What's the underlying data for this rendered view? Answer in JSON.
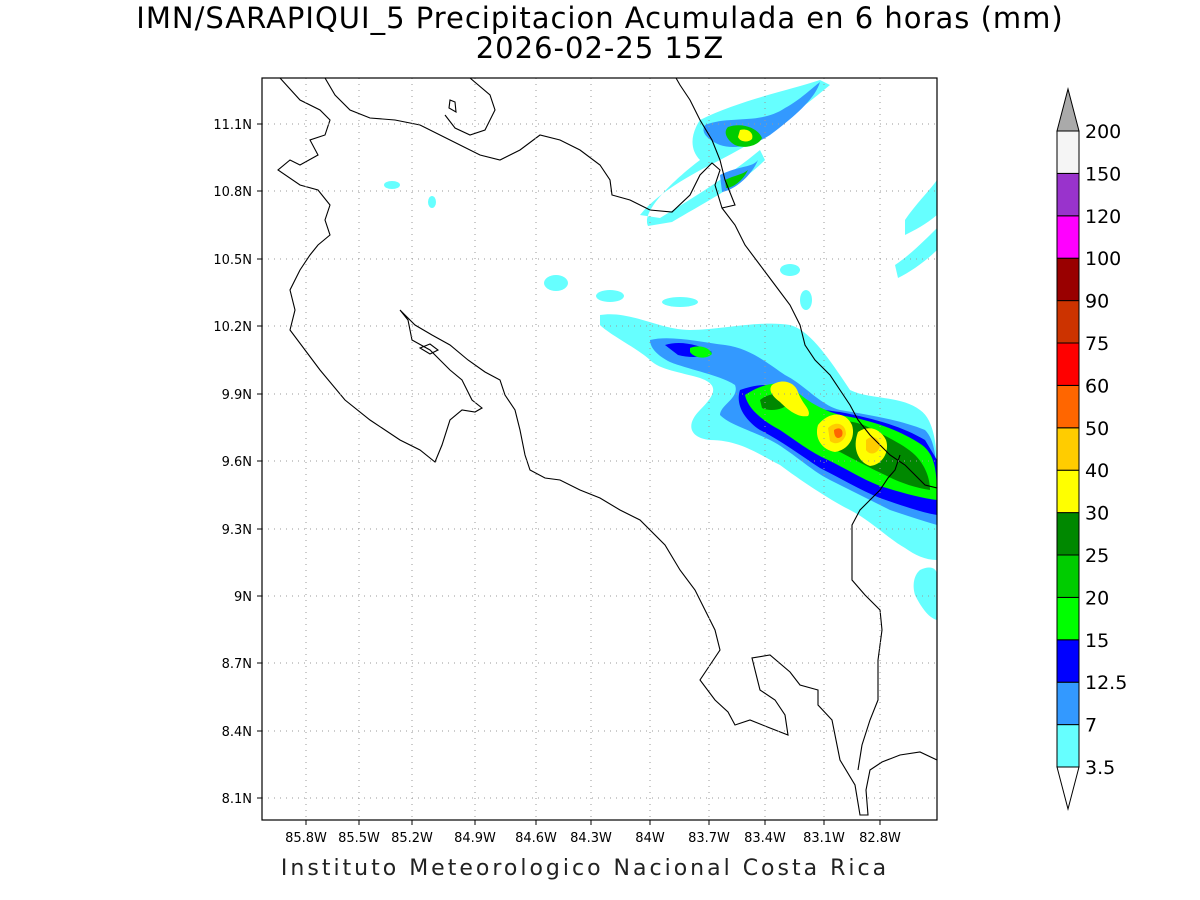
{
  "title": "IMN/SARAPIQUI_5 Precipitacion Acumulada en 6 horas (mm)",
  "subtitle": "2026-02-25 15Z",
  "footer": "Instituto Meteorologico Nacional Costa Rica",
  "map": {
    "lon_range": [
      -85.95,
      -82.65
    ],
    "lat_range": [
      8.0,
      11.3
    ],
    "lon_ticks": [
      "85.8W",
      "85.5W",
      "85.2W",
      "84.9W",
      "84.6W",
      "84.3W",
      "84W",
      "83.7W",
      "83.4W",
      "83.1W",
      "82.8W"
    ],
    "lat_ticks": [
      "11.1N",
      "10.8N",
      "10.5N",
      "10.2N",
      "9.9N",
      "9.6N",
      "9.3N",
      "9N",
      "8.7N",
      "8.4N",
      "8.1N"
    ],
    "grid": "dotted"
  },
  "legend": {
    "levels": [
      "3.5",
      "7",
      "12.5",
      "15",
      "20",
      "25",
      "30",
      "40",
      "50",
      "60",
      "75",
      "90",
      "100",
      "120",
      "150",
      "200"
    ],
    "colors": [
      "#66ffff",
      "#3399ff",
      "#0000ff",
      "#00ff00",
      "#00cc00",
      "#008800",
      "#ffff00",
      "#ffcc00",
      "#ff6600",
      "#ff0000",
      "#cc3300",
      "#990000",
      "#ff00ff",
      "#9933cc",
      "#f5f5f5",
      "#aaaaaa"
    ]
  }
}
